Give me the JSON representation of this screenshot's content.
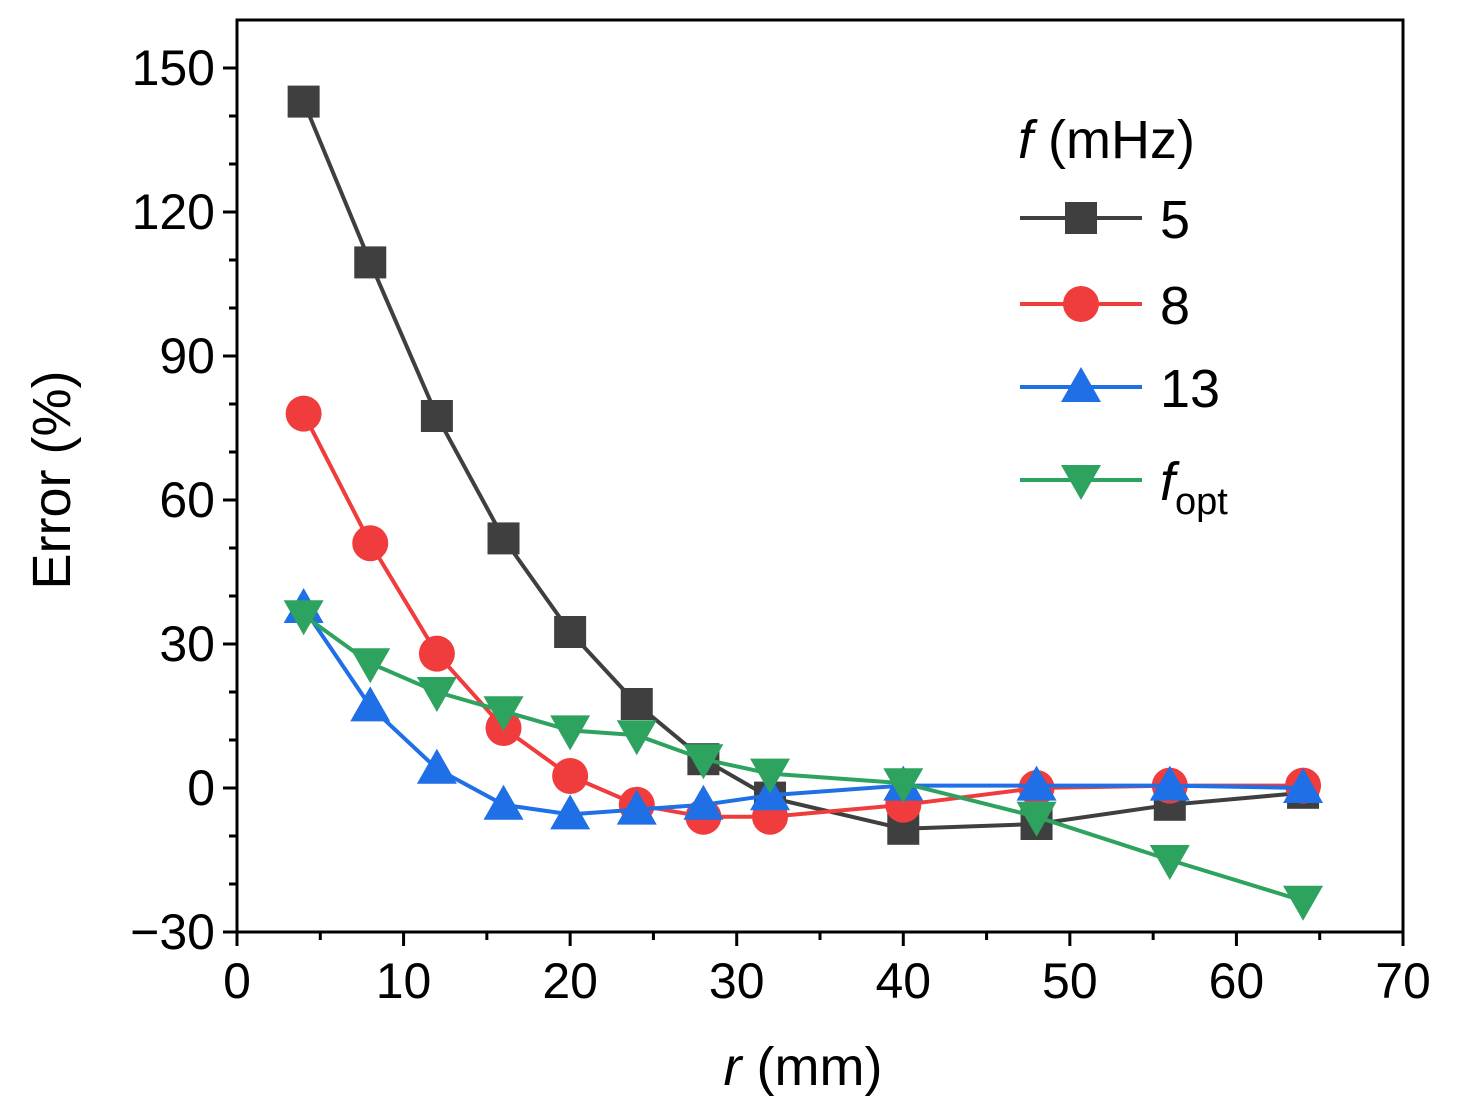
{
  "chart_data": {
    "type": "line",
    "xlabel": {
      "italic": "r",
      "rest": " (mm)"
    },
    "ylabel": "Error (%)",
    "xlim": [
      0,
      70
    ],
    "ylim": [
      -30,
      160
    ],
    "xticks": [
      0,
      10,
      20,
      30,
      40,
      50,
      60,
      70
    ],
    "xtick_labels": [
      "0",
      "10",
      "20",
      "30",
      "40",
      "50",
      "60",
      "70"
    ],
    "yticks": [
      -30,
      0,
      30,
      60,
      90,
      120,
      150
    ],
    "ytick_labels": [
      "−30",
      "0",
      "30",
      "60",
      "90",
      "120",
      "150"
    ],
    "grid": false,
    "legend": {
      "placement": "top-right",
      "title_italic": "f",
      "title_rest": " (mHz)"
    },
    "x": [
      4,
      8,
      12,
      16,
      20,
      24,
      28,
      32,
      40,
      48,
      56,
      64
    ],
    "series": [
      {
        "name": "5",
        "color": "#3f3f3f",
        "marker": "square",
        "values": [
          143,
          109.5,
          77.5,
          52,
          32.5,
          17.5,
          6,
          -2,
          -8.5,
          -7.5,
          -3.5,
          -1
        ]
      },
      {
        "name": "8",
        "color": "#f03c3c",
        "marker": "circle",
        "values": [
          78,
          51,
          28,
          12.5,
          2.5,
          -3.5,
          -6,
          -6,
          -3.5,
          0,
          0.5,
          0.5
        ]
      },
      {
        "name": "13",
        "color": "#1f6fe6",
        "marker": "triangle-up",
        "values": [
          37.5,
          17,
          4,
          -3.5,
          -5.5,
          -4.5,
          -3.5,
          -1.5,
          0.5,
          0.5,
          0.5,
          0
        ]
      },
      {
        "name": "f",
        "name_sub": "opt",
        "color": "#2ea35f",
        "marker": "triangle-down",
        "values": [
          36,
          26,
          20,
          16,
          12,
          11,
          6,
          3,
          1,
          -6,
          -15,
          -23.5
        ]
      }
    ]
  }
}
